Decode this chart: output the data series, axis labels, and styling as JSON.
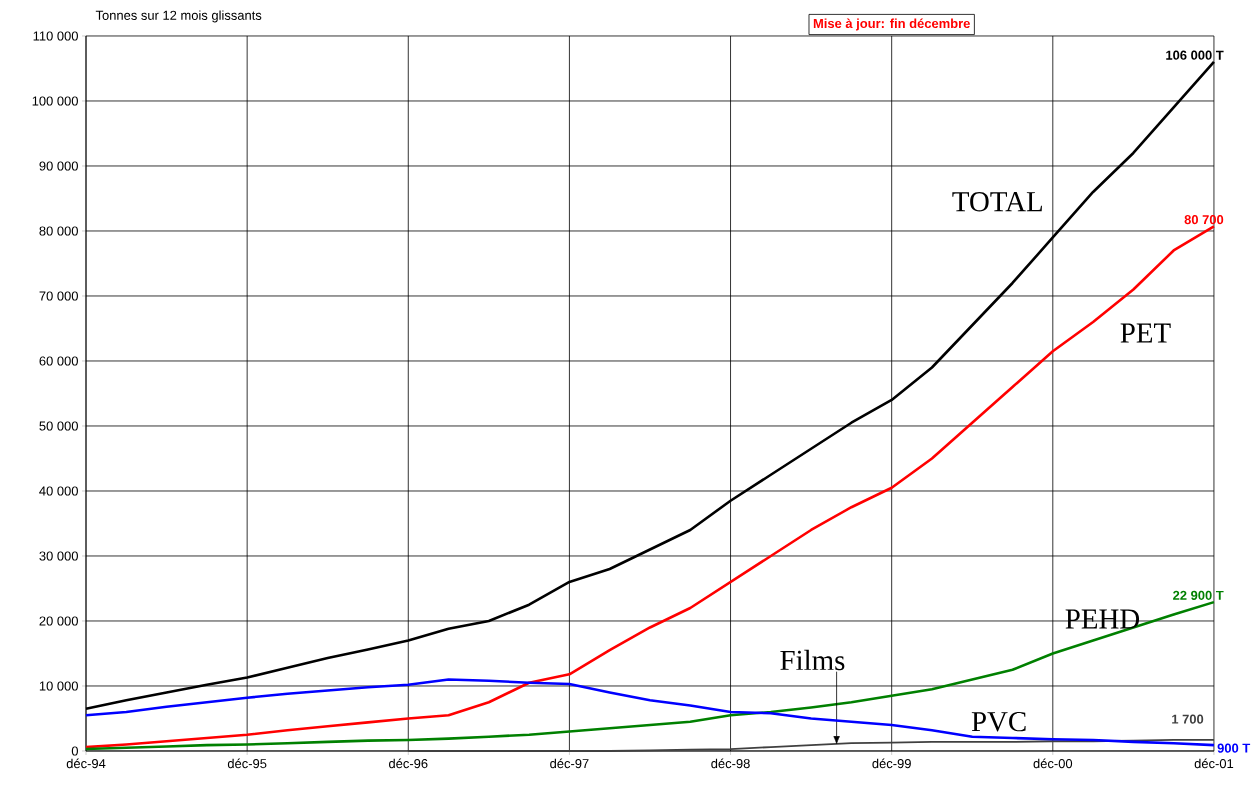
{
  "chart_data": {
    "type": "line",
    "ylabel": "Tonnes sur 12 mois glissants",
    "annotations": [
      "Mise à jour: fin décembre"
    ],
    "x": [
      "1994-12",
      "1995-03",
      "1995-06",
      "1995-09",
      "1995-12",
      "1996-03",
      "1996-06",
      "1996-09",
      "1996-12",
      "1997-03",
      "1997-06",
      "1997-09",
      "1997-12",
      "1998-03",
      "1998-06",
      "1998-09",
      "1998-12",
      "1999-03",
      "1999-06",
      "1999-09",
      "1999-12",
      "2000-03",
      "2000-06",
      "2000-09",
      "2000-12",
      "2001-03",
      "2001-06",
      "2001-09",
      "2001-12"
    ],
    "xlim": [
      "1994-12",
      "2001-12"
    ],
    "xticks": [
      {
        "value": "1994-12",
        "label": "déc-94"
      },
      {
        "value": "1995-12",
        "label": "déc-95"
      },
      {
        "value": "1996-12",
        "label": "déc-96"
      },
      {
        "value": "1997-12",
        "label": "déc-97"
      },
      {
        "value": "1998-12",
        "label": "déc-98"
      },
      {
        "value": "1999-12",
        "label": "déc-99"
      },
      {
        "value": "2000-12",
        "label": "déc-00"
      },
      {
        "value": "2001-12",
        "label": "déc-01"
      }
    ],
    "ylim": [
      0,
      110000
    ],
    "yticks": [
      {
        "value": 0,
        "label": "0"
      },
      {
        "value": 10000,
        "label": "10 000"
      },
      {
        "value": 20000,
        "label": "20 000"
      },
      {
        "value": 30000,
        "label": "30 000"
      },
      {
        "value": 40000,
        "label": "40 000"
      },
      {
        "value": 50000,
        "label": "50 000"
      },
      {
        "value": 60000,
        "label": "60 000"
      },
      {
        "value": 70000,
        "label": "70 000"
      },
      {
        "value": 80000,
        "label": "80 000"
      },
      {
        "value": 90000,
        "label": "90 000"
      },
      {
        "value": 100000,
        "label": "100 000"
      },
      {
        "value": 110000,
        "label": "110 000"
      }
    ],
    "grid": true,
    "series": [
      {
        "name": "TOTAL",
        "color": "#000000",
        "values": [
          6500,
          7800,
          9000,
          10200,
          11300,
          12800,
          14300,
          15600,
          17000,
          18800,
          20000,
          22500,
          26000,
          28000,
          31000,
          34000,
          38500,
          42500,
          46500,
          50500,
          54000,
          59000,
          65500,
          72000,
          79000,
          86000,
          92000,
          99000,
          106000
        ],
        "value_labels": [
          null,
          null,
          null,
          null,
          null,
          null,
          null,
          null,
          null,
          null,
          null,
          null,
          null,
          null,
          null,
          null,
          null,
          null,
          null,
          null,
          null,
          null,
          null,
          null,
          null,
          null,
          null,
          null,
          "106 000 T"
        ]
      },
      {
        "name": "PET",
        "color": "#ff0000",
        "values": [
          600,
          1000,
          1500,
          2000,
          2500,
          3200,
          3800,
          4400,
          5000,
          5500,
          7500,
          10500,
          11800,
          15500,
          19000,
          22000,
          26000,
          30000,
          34000,
          37500,
          40500,
          45000,
          50500,
          56000,
          61500,
          66000,
          71000,
          77000,
          80700
        ],
        "value_labels": [
          null,
          null,
          null,
          null,
          null,
          null,
          null,
          null,
          null,
          null,
          null,
          null,
          null,
          null,
          null,
          null,
          null,
          null,
          null,
          null,
          null,
          null,
          null,
          null,
          null,
          null,
          null,
          null,
          "80 700"
        ]
      },
      {
        "name": "PEHD",
        "color": "#008000",
        "values": [
          300,
          500,
          700,
          900,
          1000,
          1200,
          1400,
          1600,
          1700,
          1900,
          2200,
          2500,
          3000,
          3500,
          4000,
          4500,
          5500,
          6000,
          6700,
          7500,
          8500,
          9500,
          11000,
          12500,
          15000,
          17000,
          19000,
          21000,
          22900
        ],
        "value_labels": [
          null,
          null,
          null,
          null,
          null,
          null,
          null,
          null,
          null,
          null,
          null,
          null,
          null,
          null,
          null,
          null,
          null,
          null,
          null,
          null,
          null,
          null,
          null,
          null,
          null,
          null,
          null,
          null,
          "22 900 T"
        ]
      },
      {
        "name": "Films",
        "color": "#404040",
        "values": [
          null,
          null,
          null,
          null,
          null,
          null,
          null,
          null,
          0,
          0,
          0,
          0,
          0,
          0,
          100,
          200,
          300,
          600,
          900,
          1200,
          1300,
          1400,
          1400,
          1400,
          1500,
          1500,
          1600,
          1700,
          1700
        ],
        "value_labels": [
          null,
          null,
          null,
          null,
          null,
          null,
          null,
          null,
          null,
          null,
          null,
          null,
          null,
          null,
          null,
          null,
          null,
          null,
          null,
          null,
          null,
          null,
          null,
          null,
          null,
          null,
          null,
          null,
          "1 700"
        ]
      },
      {
        "name": "PVC",
        "color": "#0000ff",
        "values": [
          5500,
          6000,
          6800,
          7500,
          8200,
          8800,
          9300,
          9800,
          10200,
          11000,
          10800,
          10500,
          10300,
          9000,
          7800,
          7000,
          6000,
          5800,
          5000,
          4500,
          4000,
          3200,
          2200,
          2000,
          1800,
          1700,
          1400,
          1200,
          900
        ],
        "value_labels": [
          null,
          null,
          null,
          null,
          null,
          null,
          null,
          null,
          null,
          null,
          null,
          null,
          null,
          null,
          null,
          null,
          null,
          null,
          null,
          null,
          null,
          null,
          null,
          null,
          null,
          null,
          null,
          null,
          "900 T"
        ]
      }
    ]
  }
}
